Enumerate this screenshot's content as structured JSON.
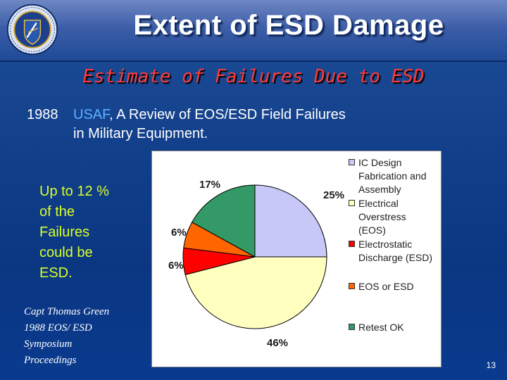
{
  "slide": {
    "title": "Extent of ESD Damage",
    "subtitle": "Estimate of Failures Due to ESD",
    "citation": {
      "year": "1988",
      "source": "USAF",
      "rest_line1": ", A Review of EOS/ESD Field Failures",
      "line2": "in Military Equipment."
    },
    "claim_lines": [
      "Up to 12 %",
      "of  the",
      "Failures",
      "could be",
      "ESD."
    ],
    "reference_lines": [
      "Capt Thomas Green",
      "1988 EOS/ ESD",
      "Symposium",
      "Proceedings"
    ],
    "page_number": "13",
    "colors": {
      "title_shadow": "#0b2a66",
      "subtitle": "#ff3a3a",
      "usaf": "#5ab0ff",
      "claim": "#d8ff2a"
    }
  },
  "chart_data": {
    "type": "pie",
    "series": [
      {
        "name": "IC Design Fabrication and Assembly",
        "value": 25,
        "label": "25%",
        "color": "#c8c8f8"
      },
      {
        "name": "Electrical Overstress (EOS)",
        "value": 46,
        "label": "46%",
        "color": "#ffffc0"
      },
      {
        "name": "Electrostatic Discharge (ESD)",
        "value": 6,
        "label": "6%",
        "color": "#ff0000"
      },
      {
        "name": "EOS or ESD",
        "value": 6,
        "label": "6%",
        "color": "#ff6600"
      },
      {
        "name": "Retest OK",
        "value": 17,
        "label": "17%",
        "color": "#339966"
      }
    ],
    "legend": {
      "placement": "right",
      "items": [
        {
          "lines": [
            "IC Design",
            "Fabrication and",
            "Assembly"
          ],
          "color": "#c8c8f8"
        },
        {
          "lines": [
            "Electrical",
            "Overstress",
            "(EOS)"
          ],
          "color": "#ffffc0"
        },
        {
          "lines": [
            "Electrostatic",
            "Discharge (ESD)"
          ],
          "color": "#ff0000"
        },
        {
          "lines": [
            "EOS or ESD"
          ],
          "color": "#ff6600"
        },
        {
          "lines": [
            "Retest OK"
          ],
          "color": "#339966"
        }
      ]
    }
  }
}
